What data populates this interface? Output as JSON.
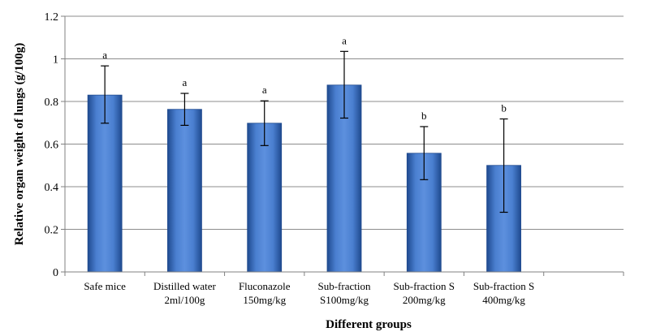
{
  "chart_data": {
    "type": "bar",
    "title": "",
    "xlabel": "Different groups",
    "ylabel": "Relative organ weight of lungs (g/100g)",
    "ylim": [
      0,
      1.2
    ],
    "yticks": [
      "0",
      "0.2",
      "0.4",
      "0.6",
      "0.8",
      "1",
      "1.2"
    ],
    "grid": true,
    "legend": "none",
    "categories": [
      [
        "Safe mice"
      ],
      [
        "Distilled water",
        "2ml/100g"
      ],
      [
        "Fluconazole",
        "150mg/kg"
      ],
      [
        "Sub-fraction",
        "S100mg/kg"
      ],
      [
        "Sub-fraction S",
        "200mg/kg"
      ],
      [
        "Sub-fraction S",
        "400mg/kg"
      ]
    ],
    "values": [
      0.83,
      0.763,
      0.698,
      0.877,
      0.557,
      0.5
    ],
    "error_low": [
      0.698,
      0.688,
      0.593,
      0.722,
      0.433,
      0.28
    ],
    "error_high": [
      0.967,
      0.838,
      0.803,
      1.035,
      0.682,
      0.718
    ],
    "significance": [
      "a",
      "a",
      "a",
      "a",
      "b",
      "b"
    ],
    "bar_color": "#3e6fc1",
    "bar_edge_color": "#1f4a8f"
  }
}
